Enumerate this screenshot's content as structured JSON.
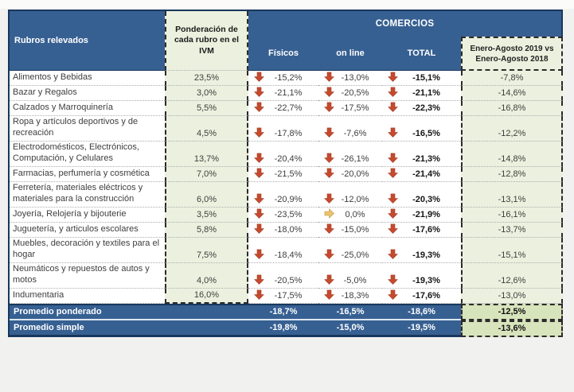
{
  "colors": {
    "header_blue": "#376092",
    "border_navy": "#17375D",
    "light_green": "#EBF1DE",
    "summary_green": "#D8E4BC",
    "arrow_red": "#C64A2E",
    "arrow_red_stroke": "#9E3A22",
    "arrow_yellow": "#EAC36C",
    "arrow_yellow_stroke": "#B89549"
  },
  "chart_data": {
    "type": "table",
    "group_header": "COMERCIOS",
    "col_rubros": "Rubros relevados",
    "col_ponderacion": "Ponderación de cada rubro en el IVM",
    "col_fisicos": "Físicos",
    "col_online": "on line",
    "col_total": "TOTAL",
    "col_ytd_line1": "Enero-Agosto 2019 vs",
    "col_ytd_line2": "Enero-Agosto 2018",
    "rows": [
      {
        "name": "Alimentos y Bebidas",
        "pond": "23,5%",
        "fisicos": {
          "trend": "down",
          "value": "-15,2%"
        },
        "online": {
          "trend": "down",
          "value": "-13,0%"
        },
        "total": {
          "trend": "down",
          "value": "-15,1%"
        },
        "ytd": "-7,8%"
      },
      {
        "name": "Bazar y Regalos",
        "pond": "3,0%",
        "fisicos": {
          "trend": "down",
          "value": "-21,1%"
        },
        "online": {
          "trend": "down",
          "value": "-20,5%"
        },
        "total": {
          "trend": "down",
          "value": "-21,1%"
        },
        "ytd": "-14,6%"
      },
      {
        "name": "Calzados y Marroquinería",
        "pond": "5,5%",
        "fisicos": {
          "trend": "down",
          "value": "-22,7%"
        },
        "online": {
          "trend": "down",
          "value": "-17,5%"
        },
        "total": {
          "trend": "down",
          "value": "-22,3%"
        },
        "ytd": "-16,8%"
      },
      {
        "name": "Ropa y artículos deportivos y de recreación",
        "pond": "4,5%",
        "fisicos": {
          "trend": "down",
          "value": "-17,8%"
        },
        "online": {
          "trend": "down",
          "value": "-7,6%"
        },
        "total": {
          "trend": "down",
          "value": "-16,5%"
        },
        "ytd": "-12,2%"
      },
      {
        "name": "Electrodomésticos, Electrónicos, Computación, y Celulares",
        "pond": "13,7%",
        "fisicos": {
          "trend": "down",
          "value": "-20,4%"
        },
        "online": {
          "trend": "down",
          "value": "-26,1%"
        },
        "total": {
          "trend": "down",
          "value": "-21,3%"
        },
        "ytd": "-14,8%"
      },
      {
        "name": "Farmacias, perfumería y cosmética",
        "pond": "7,0%",
        "fisicos": {
          "trend": "down",
          "value": "-21,5%"
        },
        "online": {
          "trend": "down",
          "value": "-20,0%"
        },
        "total": {
          "trend": "down",
          "value": "-21,4%"
        },
        "ytd": "-12,8%"
      },
      {
        "name": "Ferretería, materiales eléctricos y materiales para la construcción",
        "pond": "6,0%",
        "fisicos": {
          "trend": "down",
          "value": "-20,9%"
        },
        "online": {
          "trend": "down",
          "value": "-12,0%"
        },
        "total": {
          "trend": "down",
          "value": "-20,3%"
        },
        "ytd": "-13,1%"
      },
      {
        "name": "Joyería, Relojería y bijouterie",
        "pond": "3,5%",
        "fisicos": {
          "trend": "down",
          "value": "-23,5%"
        },
        "online": {
          "trend": "flat",
          "value": "0,0%"
        },
        "total": {
          "trend": "down",
          "value": "-21,9%"
        },
        "ytd": "-16,1%"
      },
      {
        "name": "Juguetería, y articulos escolares",
        "pond": "5,8%",
        "fisicos": {
          "trend": "down",
          "value": "-18,0%"
        },
        "online": {
          "trend": "down",
          "value": "-15,0%"
        },
        "total": {
          "trend": "down",
          "value": "-17,6%"
        },
        "ytd": "-13,7%"
      },
      {
        "name": "Muebles, decoración y textiles para el hogar",
        "pond": "7,5%",
        "fisicos": {
          "trend": "down",
          "value": "-18,4%"
        },
        "online": {
          "trend": "down",
          "value": "-25,0%"
        },
        "total": {
          "trend": "down",
          "value": "-19,3%"
        },
        "ytd": "-15,1%"
      },
      {
        "name": "Neumáticos y repuestos de autos y motos",
        "pond": "4,0%",
        "fisicos": {
          "trend": "down",
          "value": "-20,5%"
        },
        "online": {
          "trend": "down",
          "value": "-5,0%"
        },
        "total": {
          "trend": "down",
          "value": "-19,3%"
        },
        "ytd": "-12,6%"
      },
      {
        "name": "Indumentaria",
        "pond": "16,0%",
        "fisicos": {
          "trend": "down",
          "value": "-17,5%"
        },
        "online": {
          "trend": "down",
          "value": "-18,3%"
        },
        "total": {
          "trend": "down",
          "value": "-17,6%"
        },
        "ytd": "-13,0%"
      }
    ],
    "summary": [
      {
        "name": "Promedio ponderado",
        "fisicos": "-18,7%",
        "online": "-16,5%",
        "total": "-18,6%",
        "ytd": "-12,5%"
      },
      {
        "name": "Promedio simple",
        "fisicos": "-19,8%",
        "online": "-15,0%",
        "total": "-19,5%",
        "ytd": "-13,6%"
      }
    ]
  }
}
